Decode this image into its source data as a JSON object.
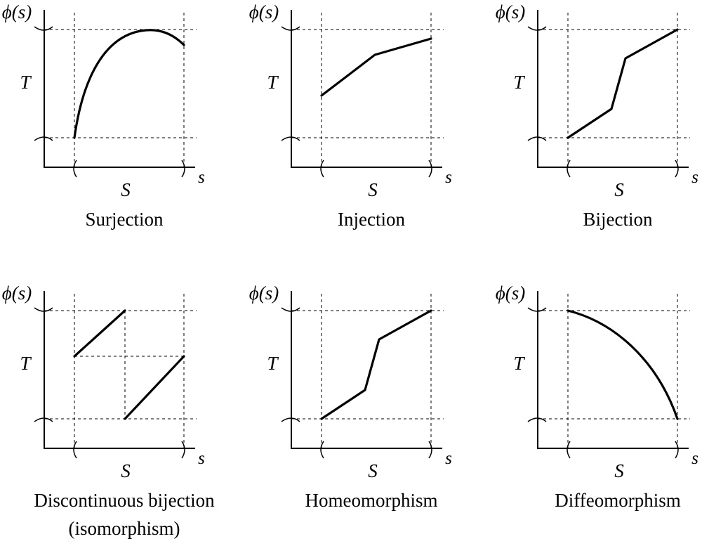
{
  "axis_labels": {
    "y": "ϕ(s)",
    "x": "s",
    "domain": "S",
    "codomain": "T"
  },
  "panels": [
    {
      "caption": [
        "Surjection"
      ],
      "kind": "surjection"
    },
    {
      "caption": [
        "Injection"
      ],
      "kind": "injection"
    },
    {
      "caption": [
        "Bijection"
      ],
      "kind": "bijection"
    },
    {
      "caption": [
        "Discontinuous bijection",
        "(isomorphism)"
      ],
      "kind": "discontinuous"
    },
    {
      "caption": [
        "Homeomorphism"
      ],
      "kind": "homeomorphism"
    },
    {
      "caption": [
        "Diffeomorphism"
      ],
      "kind": "diffeomorphism"
    }
  ]
}
